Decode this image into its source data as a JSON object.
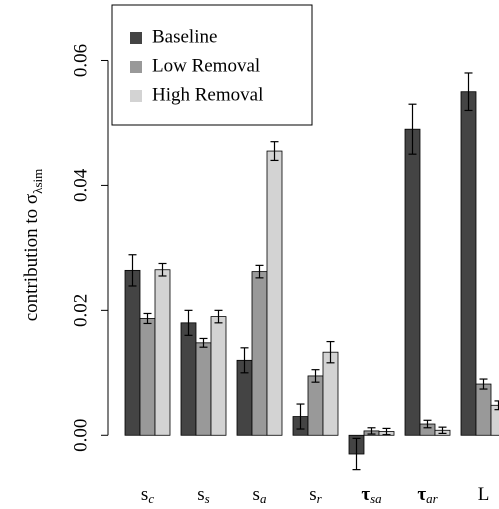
{
  "chart_data": {
    "type": "bar",
    "y_label": "contribution to σ",
    "y_label_subscript": "λsim",
    "categories": [
      "s",
      "s",
      "s",
      "s",
      "τ",
      "τ",
      "L"
    ],
    "category_subscripts": [
      "c",
      "s",
      "a",
      "r",
      "sa",
      "ar",
      null
    ],
    "series": [
      {
        "name": "Baseline",
        "color": "#444444",
        "values": [
          0.0264,
          0.018,
          0.012,
          0.003,
          -0.003,
          0.049,
          0.055
        ],
        "errors": [
          0.0025,
          0.002,
          0.002,
          0.002,
          0.0025,
          0.004,
          0.003
        ]
      },
      {
        "name": "Low Removal",
        "color": "#999999",
        "values": [
          0.0187,
          0.0148,
          0.0262,
          0.0095,
          0.0007,
          0.0018,
          0.0082
        ],
        "errors": [
          0.0008,
          0.0007,
          0.001,
          0.001,
          0.0005,
          0.0006,
          0.0008
        ]
      },
      {
        "name": "High Removal",
        "color": "#d3d3d3",
        "values": [
          0.0265,
          0.019,
          0.0455,
          0.0133,
          0.0006,
          0.0008,
          0.0048
        ],
        "errors": [
          0.001,
          0.001,
          0.0015,
          0.0017,
          0.0005,
          0.0005,
          0.0007
        ]
      }
    ],
    "ylim": [
      -0.007,
      0.066
    ],
    "yticks": [
      {
        "value": 0,
        "label": "0.00"
      },
      {
        "value": 0.02,
        "label": "0.02"
      },
      {
        "value": 0.04,
        "label": "0.04"
      },
      {
        "value": 0.06,
        "label": "0.06"
      }
    ],
    "legend": "top-left"
  }
}
